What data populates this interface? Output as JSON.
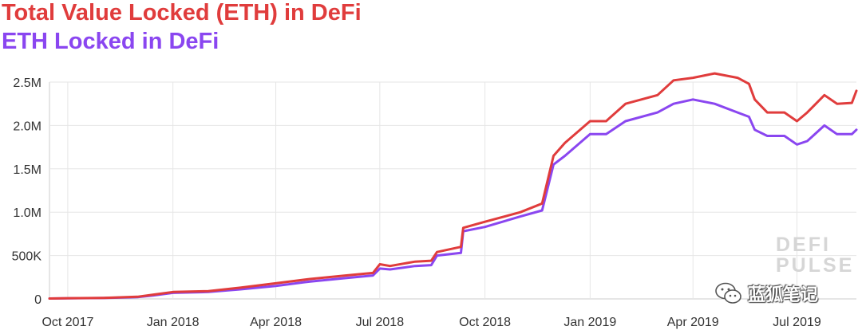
{
  "chart_data": {
    "type": "line",
    "title": "",
    "xlabel": "",
    "ylabel": "",
    "x_tick_labels": [
      "Oct 2017",
      "Jan 2018",
      "Apr 2018",
      "Jul 2018",
      "Oct 2018",
      "Jan 2019",
      "Apr 2019",
      "Jul 2019"
    ],
    "x_ticks": [
      "2017-10-01",
      "2018-01-01",
      "2018-04-01",
      "2018-07-01",
      "2018-10-01",
      "2019-01-01",
      "2019-04-01",
      "2019-07-01"
    ],
    "x_range": [
      "2017-09-15",
      "2019-08-22"
    ],
    "y_tick_labels": [
      "0",
      "500K",
      "1.0M",
      "1.5M",
      "2.0M",
      "2.5M"
    ],
    "y_ticks": [
      0,
      500000,
      1000000,
      1500000,
      2000000,
      2500000
    ],
    "ylim": [
      0,
      2500000
    ],
    "grid": true,
    "legend_position": "top-left",
    "series": [
      {
        "name": "Total Value Locked (ETH) in DeFi",
        "color": "#e03c3c",
        "points": [
          [
            "2017-09-15",
            5000
          ],
          [
            "2017-10-01",
            8000
          ],
          [
            "2017-11-01",
            12000
          ],
          [
            "2017-12-01",
            25000
          ],
          [
            "2017-12-15",
            50000
          ],
          [
            "2018-01-01",
            80000
          ],
          [
            "2018-02-01",
            90000
          ],
          [
            "2018-03-01",
            130000
          ],
          [
            "2018-04-01",
            180000
          ],
          [
            "2018-05-01",
            230000
          ],
          [
            "2018-06-01",
            270000
          ],
          [
            "2018-06-25",
            300000
          ],
          [
            "2018-07-01",
            400000
          ],
          [
            "2018-07-10",
            380000
          ],
          [
            "2018-08-01",
            430000
          ],
          [
            "2018-08-15",
            440000
          ],
          [
            "2018-08-20",
            540000
          ],
          [
            "2018-09-10",
            600000
          ],
          [
            "2018-09-12",
            820000
          ],
          [
            "2018-10-01",
            890000
          ],
          [
            "2018-11-01",
            1000000
          ],
          [
            "2018-11-20",
            1100000
          ],
          [
            "2018-11-30",
            1650000
          ],
          [
            "2018-12-10",
            1800000
          ],
          [
            "2019-01-01",
            2050000
          ],
          [
            "2019-01-15",
            2050000
          ],
          [
            "2019-02-01",
            2250000
          ],
          [
            "2019-03-01",
            2350000
          ],
          [
            "2019-03-15",
            2520000
          ],
          [
            "2019-04-01",
            2550000
          ],
          [
            "2019-04-20",
            2600000
          ],
          [
            "2019-05-10",
            2550000
          ],
          [
            "2019-05-20",
            2480000
          ],
          [
            "2019-05-25",
            2300000
          ],
          [
            "2019-06-05",
            2150000
          ],
          [
            "2019-06-20",
            2150000
          ],
          [
            "2019-07-01",
            2050000
          ],
          [
            "2019-07-10",
            2150000
          ],
          [
            "2019-07-25",
            2350000
          ],
          [
            "2019-08-05",
            2250000
          ],
          [
            "2019-08-18",
            2260000
          ],
          [
            "2019-08-22",
            2400000
          ]
        ]
      },
      {
        "name": "ETH Locked in DeFi",
        "color": "#8a46f0",
        "points": [
          [
            "2017-09-15",
            5000
          ],
          [
            "2017-10-01",
            7000
          ],
          [
            "2017-11-01",
            10000
          ],
          [
            "2017-12-01",
            20000
          ],
          [
            "2017-12-15",
            40000
          ],
          [
            "2018-01-01",
            70000
          ],
          [
            "2018-02-01",
            80000
          ],
          [
            "2018-03-01",
            110000
          ],
          [
            "2018-04-01",
            150000
          ],
          [
            "2018-05-01",
            200000
          ],
          [
            "2018-06-01",
            240000
          ],
          [
            "2018-06-25",
            270000
          ],
          [
            "2018-07-01",
            350000
          ],
          [
            "2018-07-10",
            340000
          ],
          [
            "2018-08-01",
            380000
          ],
          [
            "2018-08-15",
            390000
          ],
          [
            "2018-08-20",
            500000
          ],
          [
            "2018-09-10",
            530000
          ],
          [
            "2018-09-12",
            780000
          ],
          [
            "2018-10-01",
            830000
          ],
          [
            "2018-11-01",
            950000
          ],
          [
            "2018-11-20",
            1020000
          ],
          [
            "2018-11-30",
            1550000
          ],
          [
            "2018-12-10",
            1650000
          ],
          [
            "2019-01-01",
            1900000
          ],
          [
            "2019-01-15",
            1900000
          ],
          [
            "2019-02-01",
            2050000
          ],
          [
            "2019-03-01",
            2150000
          ],
          [
            "2019-03-15",
            2250000
          ],
          [
            "2019-04-01",
            2300000
          ],
          [
            "2019-04-20",
            2250000
          ],
          [
            "2019-05-10",
            2150000
          ],
          [
            "2019-05-20",
            2100000
          ],
          [
            "2019-05-25",
            1950000
          ],
          [
            "2019-06-05",
            1880000
          ],
          [
            "2019-06-20",
            1880000
          ],
          [
            "2019-07-01",
            1780000
          ],
          [
            "2019-07-10",
            1820000
          ],
          [
            "2019-07-25",
            2000000
          ],
          [
            "2019-08-05",
            1900000
          ],
          [
            "2019-08-18",
            1900000
          ],
          [
            "2019-08-22",
            1950000
          ]
        ]
      }
    ]
  },
  "watermark": {
    "line1": "DEFI",
    "line2": "PULSE"
  },
  "wechat_overlay": {
    "label": "蓝狐笔记",
    "icon": "wechat-icon"
  }
}
